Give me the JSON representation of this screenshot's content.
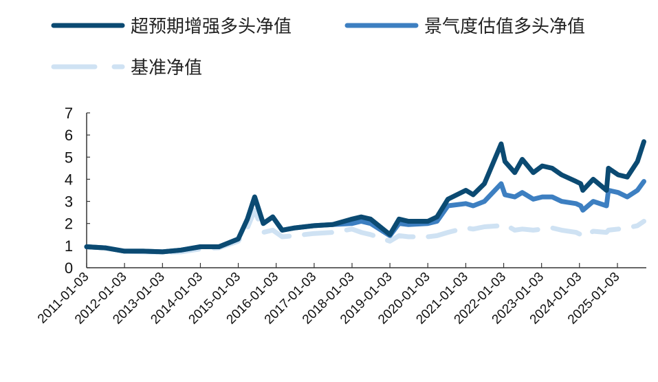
{
  "chart_data": {
    "type": "line",
    "title": "",
    "xlabel": "",
    "ylabel": "",
    "ylim": [
      0,
      7
    ],
    "yticks": [
      0,
      1,
      2,
      3,
      4,
      5,
      6,
      7
    ],
    "xticks": [
      "2011-01-03",
      "2012-01-03",
      "2013-01-03",
      "2014-01-03",
      "2015-01-03",
      "2016-01-03",
      "2017-01-03",
      "2018-01-03",
      "2019-01-03",
      "2020-01-03",
      "2021-01-03",
      "2022-01-03",
      "2023-01-03",
      "2024-01-03",
      "2025-01-03"
    ],
    "xlim": [
      "2011-01-03",
      "2025-10-01"
    ],
    "grid": false,
    "legend": "top",
    "x": [
      "2011-01-03",
      "2011-07-01",
      "2012-01-03",
      "2012-07-01",
      "2013-01-03",
      "2013-07-01",
      "2014-01-03",
      "2014-07-01",
      "2015-01-03",
      "2015-04-01",
      "2015-06-10",
      "2015-09-01",
      "2015-12-01",
      "2016-03-01",
      "2016-07-01",
      "2017-01-03",
      "2017-07-01",
      "2018-01-03",
      "2018-04-01",
      "2018-07-01",
      "2019-01-03",
      "2019-04-01",
      "2019-07-01",
      "2020-01-03",
      "2020-04-01",
      "2020-07-15",
      "2021-01-03",
      "2021-03-15",
      "2021-07-01",
      "2021-12-10",
      "2022-01-15",
      "2022-04-20",
      "2022-07-01",
      "2022-10-15",
      "2023-01-10",
      "2023-04-15",
      "2023-07-15",
      "2023-12-01",
      "2024-01-15",
      "2024-02-05",
      "2024-05-15",
      "2024-09-20",
      "2024-10-08",
      "2025-01-10",
      "2025-04-08",
      "2025-07-15",
      "2025-09-15"
    ],
    "series": [
      {
        "name": "超预期增强多头净值",
        "color": "#0b4a72",
        "style": "solid",
        "values": [
          0.95,
          0.9,
          0.75,
          0.75,
          0.72,
          0.8,
          0.95,
          0.95,
          1.3,
          2.2,
          3.2,
          2.0,
          2.3,
          1.7,
          1.8,
          1.9,
          1.95,
          2.2,
          2.3,
          2.2,
          1.5,
          2.2,
          2.1,
          2.1,
          2.3,
          3.1,
          3.5,
          3.3,
          3.8,
          5.6,
          4.8,
          4.3,
          4.9,
          4.3,
          4.6,
          4.5,
          4.2,
          3.9,
          3.8,
          3.5,
          4.0,
          3.5,
          4.5,
          4.2,
          4.1,
          4.8,
          5.7
        ]
      },
      {
        "name": "景气度估值多头净值",
        "color": "#3d7fc1",
        "style": "solid",
        "values": [
          0.95,
          0.9,
          0.75,
          0.75,
          0.72,
          0.8,
          0.95,
          0.95,
          1.3,
          2.2,
          3.2,
          2.0,
          2.3,
          1.7,
          1.8,
          1.9,
          1.95,
          2.0,
          2.1,
          2.0,
          1.45,
          2.0,
          1.95,
          2.0,
          2.1,
          2.8,
          2.9,
          2.8,
          3.0,
          3.8,
          3.3,
          3.2,
          3.4,
          3.1,
          3.2,
          3.2,
          3.0,
          2.9,
          2.8,
          2.6,
          3.0,
          2.8,
          3.5,
          3.4,
          3.2,
          3.5,
          3.9
        ]
      },
      {
        "name": "基准净值",
        "color": "#cfe2f3",
        "style": "dashed",
        "values": [
          0.95,
          0.9,
          0.75,
          0.72,
          0.7,
          0.72,
          0.85,
          0.9,
          1.2,
          1.8,
          2.6,
          1.6,
          1.7,
          1.4,
          1.45,
          1.55,
          1.6,
          1.75,
          1.6,
          1.5,
          1.2,
          1.45,
          1.4,
          1.4,
          1.45,
          1.6,
          1.8,
          1.75,
          1.85,
          1.9,
          1.95,
          1.7,
          1.75,
          1.7,
          1.75,
          1.8,
          1.7,
          1.6,
          1.5,
          1.4,
          1.65,
          1.6,
          1.7,
          1.75,
          1.8,
          1.9,
          2.1
        ]
      }
    ]
  }
}
